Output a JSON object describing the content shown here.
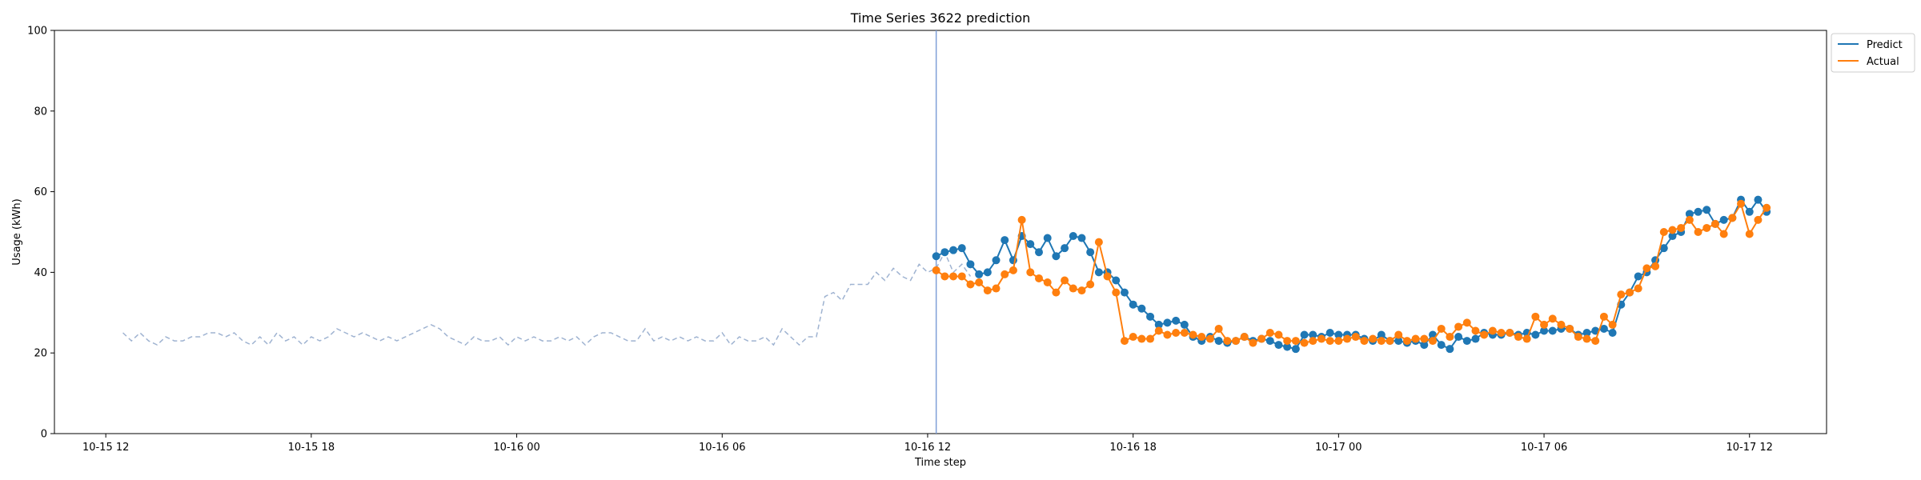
{
  "chart_data": {
    "type": "line",
    "title": "Time Series 3622 prediction",
    "xlabel": "Time step",
    "ylabel": "Usage (kWh)",
    "ylim": [
      0,
      100
    ],
    "yticks": [
      0,
      20,
      40,
      60,
      80,
      100
    ],
    "xlim": [
      "2023-10-15T10:30",
      "2023-10-17T14:15"
    ],
    "xticks": [
      {
        "t": "2023-10-15T12:00",
        "label": "10-15 12"
      },
      {
        "t": "2023-10-15T18:00",
        "label": "10-15 18"
      },
      {
        "t": "2023-10-16T00:00",
        "label": "10-16 00"
      },
      {
        "t": "2023-10-16T06:00",
        "label": "10-16 06"
      },
      {
        "t": "2023-10-16T12:00",
        "label": "10-16 12"
      },
      {
        "t": "2023-10-16T18:00",
        "label": "10-16 18"
      },
      {
        "t": "2023-10-17T00:00",
        "label": "10-17 00"
      },
      {
        "t": "2023-10-17T06:00",
        "label": "10-17 06"
      },
      {
        "t": "2023-10-17T12:00",
        "label": "10-17 12"
      }
    ],
    "grid": false,
    "legend_position": "outside top-right",
    "split_time": "2023-10-16T12:15",
    "history": {
      "start": "2023-10-15T12:30",
      "step_minutes": 15,
      "color": "#9fb3d1",
      "style": "dashed",
      "values": [
        25,
        23,
        25,
        23,
        22,
        24,
        23,
        23,
        24,
        24,
        25,
        25,
        24,
        25,
        23,
        22,
        24,
        22,
        25,
        23,
        24,
        22,
        24,
        23,
        24,
        26,
        25,
        24,
        25,
        24,
        23,
        24,
        23,
        24,
        25,
        26,
        27,
        26,
        24,
        23,
        22,
        24,
        23,
        23,
        24,
        22,
        24,
        23,
        24,
        23,
        23,
        24,
        23,
        24,
        22,
        24,
        25,
        25,
        24,
        23,
        23,
        26,
        23,
        24,
        23,
        24,
        23,
        24,
        23,
        23,
        25,
        22,
        24,
        23,
        23,
        24,
        22,
        26,
        24,
        22,
        24,
        24,
        34,
        35,
        33,
        37,
        37,
        37,
        40,
        38,
        41,
        39,
        38,
        42,
        40,
        41,
        45,
        40,
        42,
        39
      ]
    },
    "forecast": {
      "start": "2023-10-16T12:15",
      "step_minutes": 15
    },
    "series": [
      {
        "name": "Predict",
        "color": "#1f77b4",
        "values": [
          44,
          45,
          45.5,
          46,
          42,
          39.5,
          40,
          43,
          48,
          43,
          49,
          47,
          45,
          48.5,
          44,
          46,
          49,
          48.5,
          45,
          40,
          40,
          38,
          35,
          32,
          31,
          29,
          27,
          27.5,
          28,
          27,
          24,
          23,
          24,
          23,
          22.5,
          23,
          24,
          23,
          23.5,
          23,
          22,
          21.5,
          21,
          24.5,
          24.5,
          24,
          25,
          24.5,
          24.5,
          24.5,
          23.5,
          23,
          24.5,
          23,
          23,
          22.5,
          23,
          22,
          24.5,
          22,
          21,
          24,
          23,
          23.5,
          25,
          24.5,
          24.5,
          25,
          24.5,
          25,
          24.5,
          25.5,
          25.5,
          26,
          26,
          24.5,
          25,
          25.5,
          26,
          25,
          32,
          35,
          39,
          40,
          43,
          46,
          49,
          50,
          54.5,
          55,
          55.5,
          52,
          53,
          53.5,
          58,
          55,
          58,
          55
        ]
      },
      {
        "name": "Actual",
        "color": "#ff7f0e",
        "values": [
          40.5,
          39,
          39,
          39,
          37,
          37.5,
          35.5,
          36,
          39.5,
          40.5,
          53,
          40,
          38.5,
          37.5,
          35,
          38,
          36,
          35.5,
          37,
          47.5,
          39,
          35,
          23,
          24,
          23.5,
          23.5,
          25.5,
          24.5,
          25,
          25,
          24.5,
          24,
          23.5,
          26,
          23,
          23,
          24,
          22.5,
          23.5,
          25,
          24.5,
          23,
          23,
          22.5,
          23,
          23.5,
          23,
          23,
          23.5,
          24,
          23,
          23.5,
          23,
          23,
          24.5,
          23,
          23.5,
          23.5,
          23,
          26,
          24,
          26.5,
          27.5,
          25.5,
          24.5,
          25.5,
          25,
          25,
          24,
          23.5,
          29,
          27,
          28.5,
          27,
          26,
          24,
          23.5,
          23,
          29,
          27,
          34.5,
          35,
          36,
          41,
          41.5,
          50,
          50.5,
          51,
          53,
          50,
          51,
          52,
          49.5,
          53.5,
          57,
          49.5,
          53,
          56
        ]
      }
    ]
  }
}
